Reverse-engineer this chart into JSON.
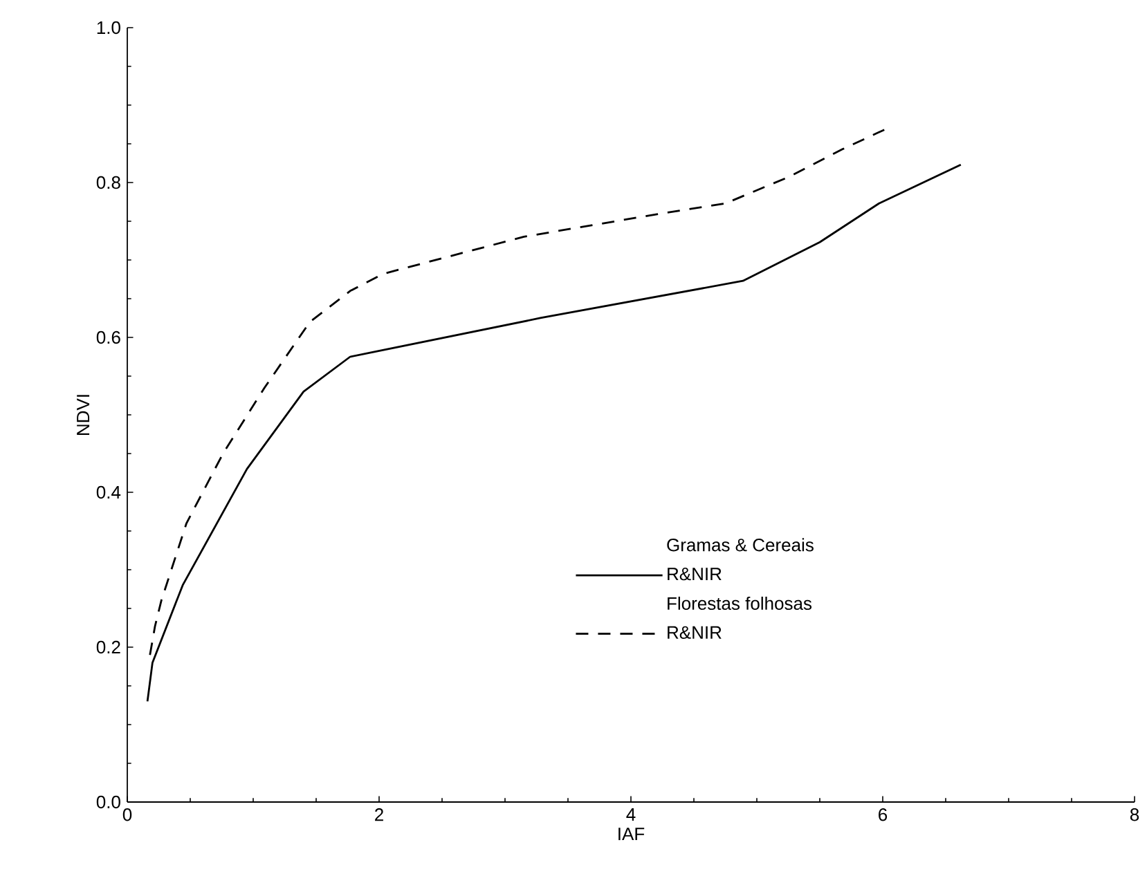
{
  "chart_data": {
    "type": "line",
    "xlabel": "IAF",
    "ylabel": "NDVI",
    "xlim": [
      0,
      8
    ],
    "xticks": [
      0,
      2,
      4,
      6,
      8
    ],
    "ylim": [
      0,
      1
    ],
    "yticks": [
      {
        "value": 0,
        "label": "0.0"
      },
      {
        "value": 0.2,
        "label": "0.2"
      },
      {
        "value": 0.4,
        "label": "0.4"
      },
      {
        "value": 0.6,
        "label": "0.6"
      },
      {
        "value": 0.8,
        "label": "0.8"
      },
      {
        "value": 1,
        "label": "1.0"
      }
    ],
    "grid": false,
    "legend": "right",
    "marker": "none",
    "annotations": [
      "Gramas & Cereais",
      "Florestas folhosas"
    ],
    "series": [
      {
        "name": "R&NIR",
        "color": "#000000",
        "line_style": "solid",
        "x": [
          0.16,
          0.2,
          0.44,
          0.95,
          1.4,
          1.77,
          3.28,
          4.89,
          5.5,
          5.97,
          6.62
        ],
        "values": [
          0.13,
          0.18,
          0.28,
          0.43,
          0.53,
          0.575,
          0.625,
          0.673,
          0.723,
          0.773,
          0.823
        ]
      },
      {
        "name": "R&NIR",
        "color": "#000000",
        "line_style": "dashed",
        "x": [
          0.18,
          0.22,
          0.27,
          0.47,
          0.76,
          1.09,
          1.45,
          1.77,
          2.03,
          3.15,
          4.24,
          4.75,
          5.25,
          5.68,
          6.05
        ],
        "values": [
          0.19,
          0.227,
          0.26,
          0.36,
          0.45,
          0.535,
          0.62,
          0.66,
          0.682,
          0.73,
          0.76,
          0.773,
          0.807,
          0.843,
          0.871
        ]
      }
    ]
  }
}
